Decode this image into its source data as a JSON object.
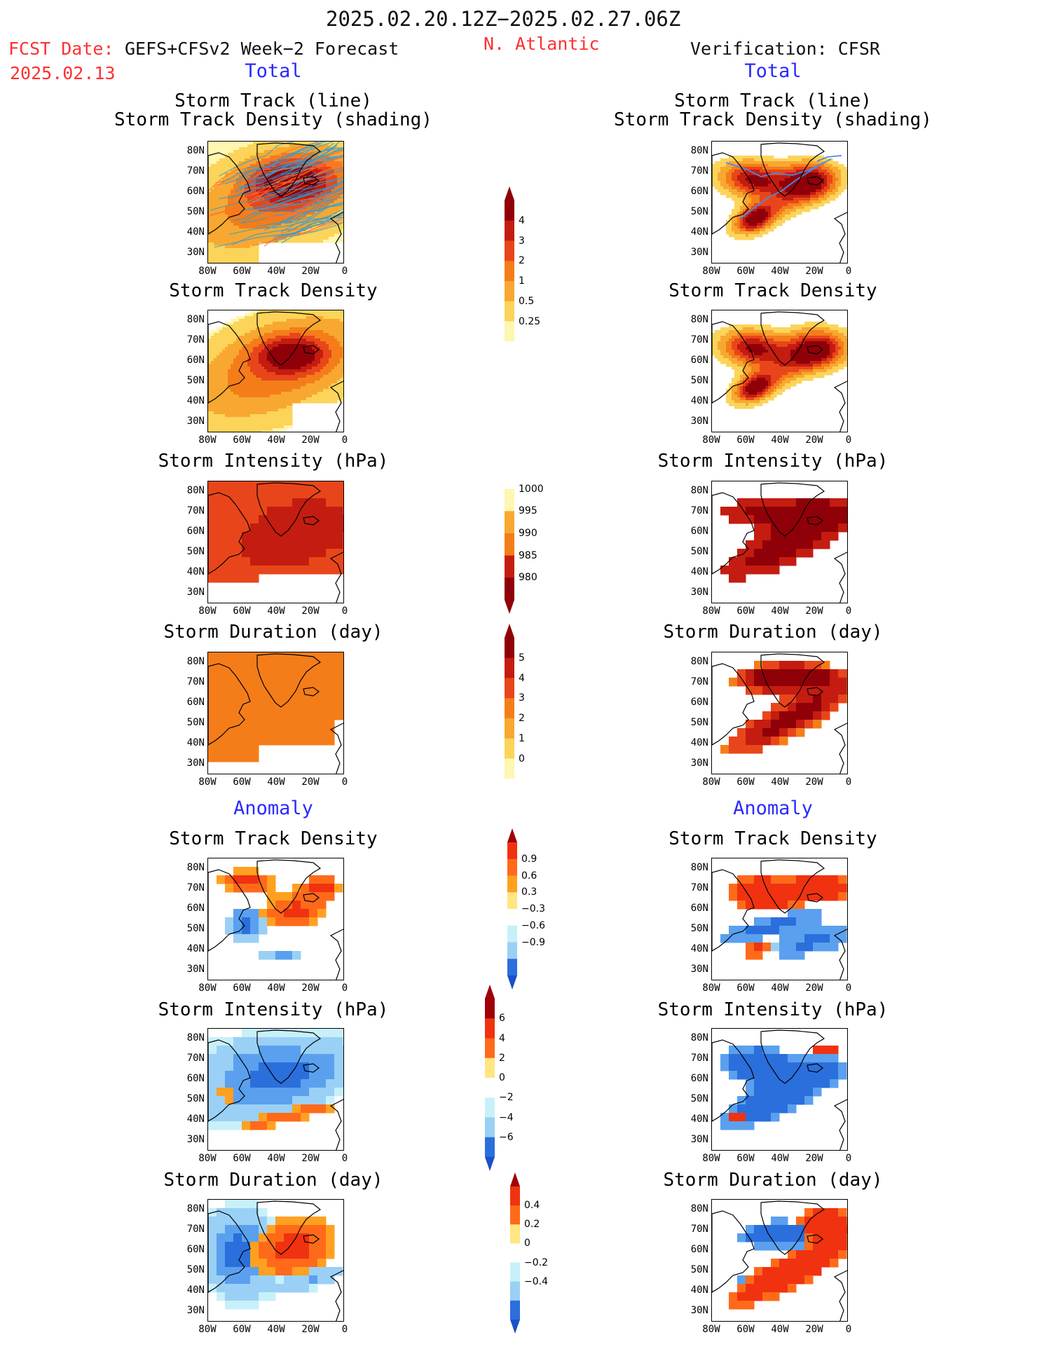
{
  "header": {
    "period": "2025.02.20.12Z−2025.02.27.06Z",
    "fcst_label": "FCST Date:",
    "fcst_product": "GEFS+CFSv2 Week−2 Forecast",
    "fcst_date": "2025.02.13",
    "region": "N. Atlantic",
    "verification": "Verification: CFSR"
  },
  "sections": {
    "total_left": "Total",
    "total_right": "Total",
    "anomaly_left": "Anomaly",
    "anomaly_right": "Anomaly"
  },
  "titles": {
    "track_line": "Storm Track (line)",
    "track_density_shading": "Storm Track Density (shading)",
    "track_density": "Storm Track Density",
    "intensity": "Storm Intensity (hPa)",
    "duration": "Storm Duration (day)"
  },
  "axes": {
    "lat": [
      "80N",
      "70N",
      "60N",
      "50N",
      "40N",
      "30N"
    ],
    "lon": [
      "80W",
      "60W",
      "40W",
      "20W",
      "0"
    ]
  },
  "colorbars": {
    "density": [
      "4",
      "3",
      "2",
      "1",
      "0.5",
      "0.25"
    ],
    "intensity": [
      "1000",
      "995",
      "990",
      "985",
      "980"
    ],
    "duration": [
      "5",
      "4",
      "3",
      "2",
      "1",
      "0"
    ],
    "density_anom": [
      "0.9",
      "0.6",
      "0.3",
      "−0.3",
      "−0.6",
      "−0.9"
    ],
    "intensity_anom": [
      "6",
      "4",
      "2",
      "0",
      "−2",
      "−4",
      "−6"
    ],
    "duration_anom": [
      "0.4",
      "0.2",
      "0",
      "−0.2",
      "−0.4"
    ]
  },
  "colors": {
    "warm": [
      "#fff6b0",
      "#fcd45a",
      "#f8a830",
      "#f47d1a",
      "#e8461a",
      "#c41c10",
      "#900008"
    ],
    "anom_pos": [
      "#ffe680",
      "#ffa020",
      "#ff6a1a",
      "#f03210",
      "#a00008"
    ],
    "anom_neg": [
      "#c8f0fa",
      "#9ad0f5",
      "#5aa0ee",
      "#2a6fdc",
      "#1a50c8"
    ],
    "track_fcst": "#22a0e0",
    "track_obs": "#4a8ae8",
    "region_text": "#ff3030",
    "section_text": "#2020ff"
  }
}
